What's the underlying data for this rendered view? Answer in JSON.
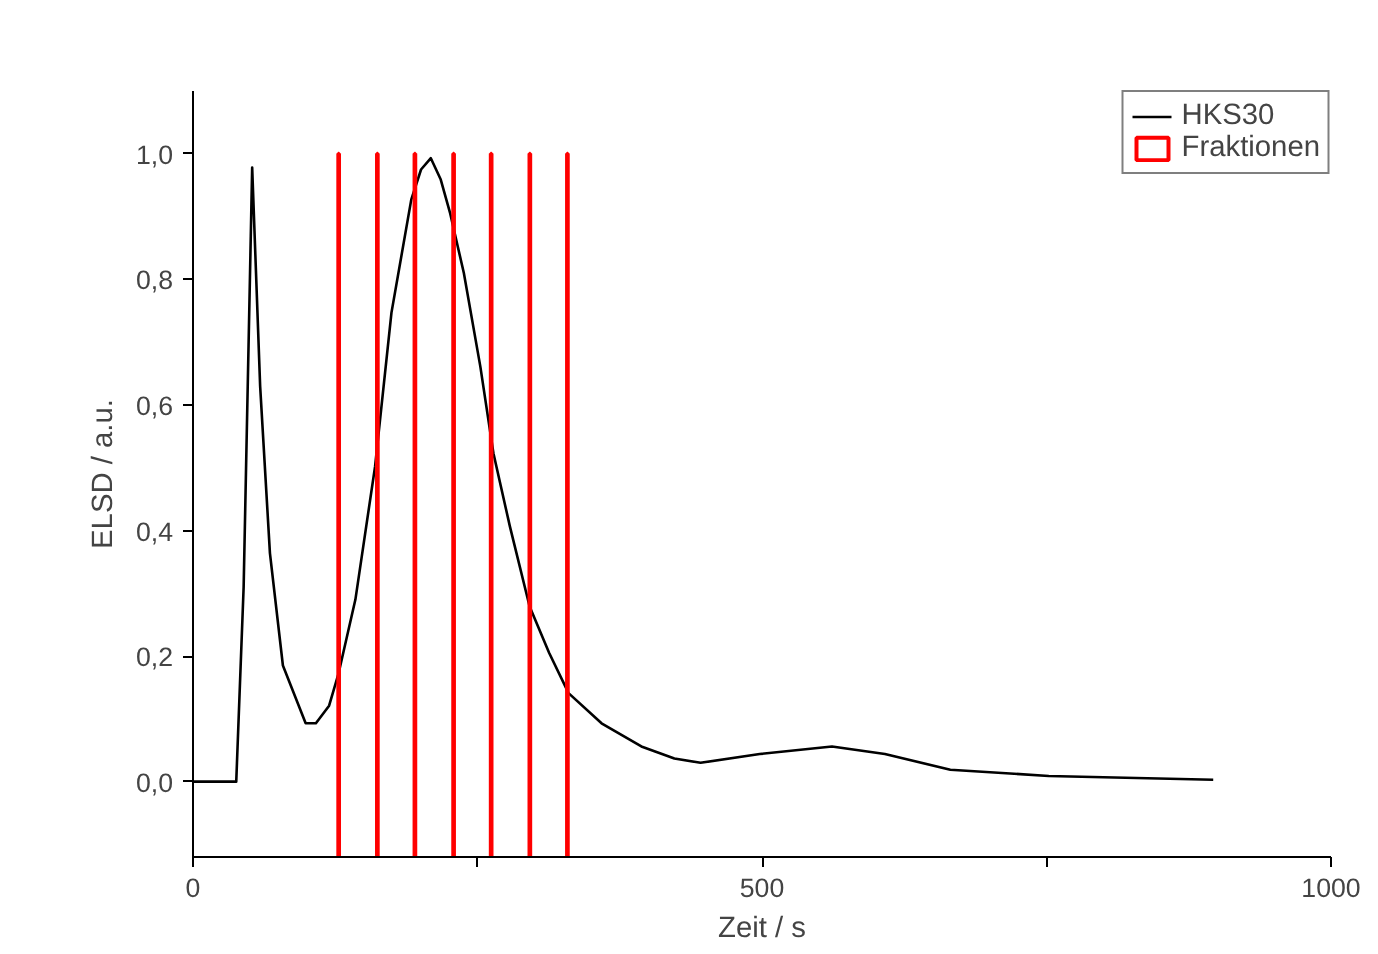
{
  "chart_data": {
    "type": "line",
    "xlabel": "Zeit / s",
    "ylabel": "ELSD / a.u.",
    "xlim": [
      0,
      1000
    ],
    "ylim": [
      -0.12,
      1.1
    ],
    "xticks": [
      0,
      {
        "value": 250,
        "label": null
      },
      500,
      {
        "value": 750,
        "label": null
      },
      1000
    ],
    "yticks": [
      {
        "value": 0,
        "label": "0,0"
      },
      {
        "value": 0.2,
        "label": "0,2"
      },
      {
        "value": 0.4,
        "label": "0,4"
      },
      {
        "value": 0.6,
        "label": "0,6"
      },
      {
        "value": 0.8,
        "label": "0,8"
      },
      {
        "value": 1.0,
        "label": "1,0"
      }
    ],
    "grid": false,
    "legend": "top right",
    "line_style": "solid",
    "marker": "none",
    "series": [
      {
        "name": "HKS30",
        "color": "#000000",
        "x": [
          0,
          38,
          44.5,
          52,
          59,
          67.6,
          79,
          99,
          108,
          119.6,
          128,
          142.7,
          160,
          174.4,
          191.8,
          200.4,
          209,
          217.7,
          226,
          238,
          252.5,
          264,
          278.4,
          295.8,
          313,
          330,
          359,
          394,
          423,
          446,
          498,
          561.5,
          608,
          665.5,
          752,
          896.5
        ],
        "values": [
          0,
          0,
          0.31,
          0.978,
          0.63,
          0.364,
          0.185,
          0.093,
          0.093,
          0.121,
          0.173,
          0.29,
          0.502,
          0.747,
          0.927,
          0.975,
          0.993,
          0.959,
          0.905,
          0.81,
          0.661,
          0.523,
          0.407,
          0.279,
          0.205,
          0.141,
          0.093,
          0.056,
          0.037,
          0.03,
          0.044,
          0.056,
          0.044,
          0.019,
          0.009,
          0.003
        ]
      },
      {
        "name": "Fraktionen",
        "color": "#ff0000",
        "type": "bar",
        "x": [
          128,
          162,
          195,
          229,
          262,
          296,
          329
        ],
        "base": [
          -0.12,
          -0.12,
          -0.12,
          -0.12,
          -0.12,
          -0.12,
          -0.12
        ],
        "values": [
          1.12,
          1.12,
          1.12,
          1.12,
          1.12,
          1.12,
          1.12
        ]
      }
    ]
  }
}
